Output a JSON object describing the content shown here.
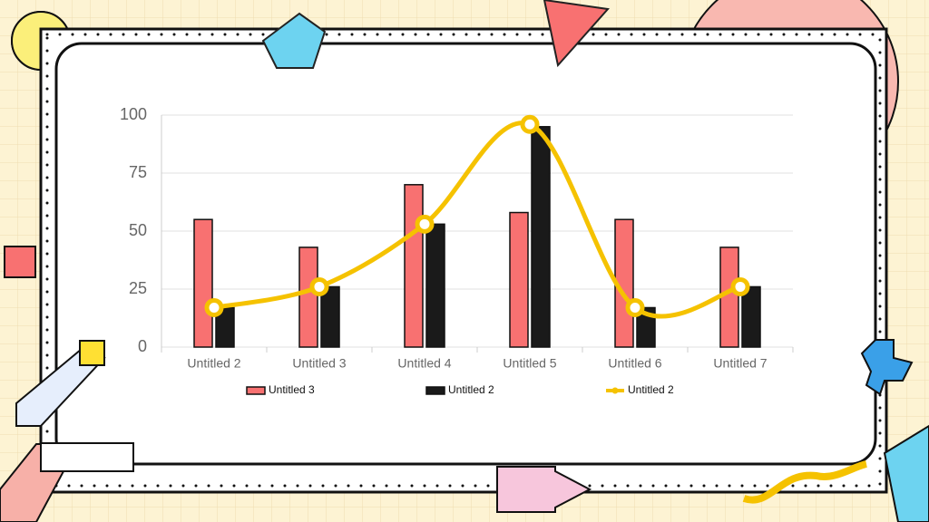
{
  "chart_data": {
    "type": "bar",
    "categories": [
      "Untitled 2",
      "Untitled 3",
      "Untitled 4",
      "Untitled 5",
      "Untitled 6",
      "Untitled 7"
    ],
    "series": [
      {
        "name": "Untitled 3",
        "color": "#f87171",
        "type": "bar",
        "values": [
          55,
          43,
          70,
          58,
          55,
          43
        ]
      },
      {
        "name": "Untitled 2",
        "color": "#1a1a1a",
        "type": "bar",
        "values": [
          17,
          26,
          53,
          95,
          17,
          26
        ]
      },
      {
        "name": "Untitled 2",
        "color": "#f5c200",
        "type": "line",
        "values": [
          17,
          26,
          53,
          96,
          17,
          26
        ]
      }
    ],
    "ylim": [
      0,
      100
    ],
    "yticks": [
      0,
      25,
      50,
      75,
      100
    ],
    "grid": true,
    "legend": "bottom"
  }
}
